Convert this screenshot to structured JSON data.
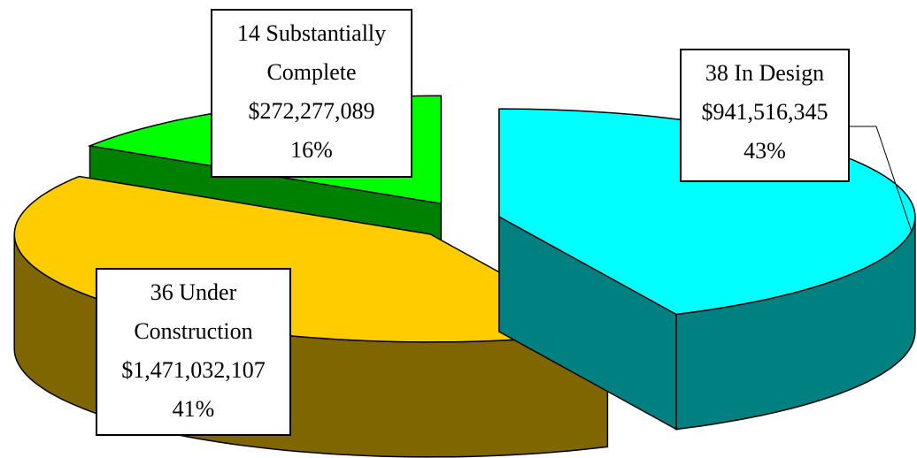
{
  "chart_data": {
    "type": "pie",
    "categories": [
      "38 In Design",
      "36 Under Construction",
      "14 Substantially Complete"
    ],
    "amounts": [
      "$941,516,345",
      "$1,471,032,107",
      "$272,277,089"
    ],
    "values": [
      43,
      41,
      16
    ],
    "value_labels": [
      "43%",
      "41%",
      "16%"
    ],
    "colors": [
      "#00ffff",
      "#ffcc00",
      "#00ff00"
    ],
    "side_colors": [
      "#008080",
      "#7f6600",
      "#008000"
    ]
  }
}
